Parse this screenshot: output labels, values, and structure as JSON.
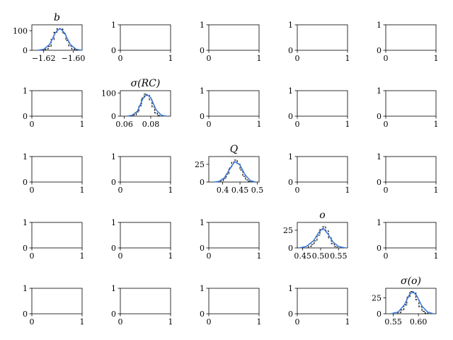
{
  "figure": {
    "rows": 5,
    "cols": 5
  },
  "colors": {
    "hist": "#000000",
    "kde": "#3a78d8",
    "axis": "#000000"
  },
  "chart_data": [
    {
      "row": 0,
      "col": 0,
      "type": "area",
      "title": "b",
      "xlim": [
        -1.628,
        -1.594
      ],
      "ylim": [
        0,
        130
      ],
      "xticks": [
        -1.62,
        -1.6
      ],
      "xticklabels": [
        "−1.62",
        "−1.60"
      ],
      "yticks": [
        0,
        100
      ],
      "yticklabels": [
        "0",
        "100"
      ],
      "series": [
        {
          "kind": "hist",
          "x": [
            -1.62,
            -1.618,
            -1.616,
            -1.614,
            -1.612,
            -1.61,
            -1.608,
            -1.606,
            -1.604,
            -1.602,
            -1.6,
            -1.598
          ],
          "y": [
            2,
            6,
            20,
            55,
            92,
            110,
            108,
            85,
            50,
            22,
            6,
            1
          ]
        },
        {
          "kind": "kde",
          "x": [
            -1.624,
            -1.62,
            -1.616,
            -1.612,
            -1.609,
            -1.606,
            -1.602,
            -1.598,
            -1.594
          ],
          "y": [
            0,
            5,
            30,
            90,
            112,
            90,
            30,
            5,
            0
          ]
        }
      ]
    },
    {
      "row": 0,
      "col": 1,
      "type": "empty",
      "xlim": [
        0,
        1
      ],
      "ylim": [
        0,
        1
      ],
      "xticklabels": [
        "0",
        "1"
      ],
      "yticklabels": [
        "0",
        "1"
      ]
    },
    {
      "row": 0,
      "col": 2,
      "type": "empty",
      "xlim": [
        0,
        1
      ],
      "ylim": [
        0,
        1
      ],
      "xticklabels": [
        "0",
        "1"
      ],
      "yticklabels": [
        "0",
        "1"
      ]
    },
    {
      "row": 0,
      "col": 3,
      "type": "empty",
      "xlim": [
        0,
        1
      ],
      "ylim": [
        0,
        1
      ],
      "xticklabels": [
        "0",
        "1"
      ],
      "yticklabels": [
        "0",
        "1"
      ]
    },
    {
      "row": 0,
      "col": 4,
      "type": "empty",
      "xlim": [
        0,
        1
      ],
      "ylim": [
        0,
        1
      ],
      "xticklabels": [
        "0",
        "1"
      ],
      "yticklabels": [
        "0",
        "1"
      ]
    },
    {
      "row": 1,
      "col": 0,
      "type": "empty",
      "xlim": [
        0,
        1
      ],
      "ylim": [
        0,
        1
      ],
      "xticklabels": [
        "0",
        "1"
      ],
      "yticklabels": [
        "0",
        "1"
      ]
    },
    {
      "row": 1,
      "col": 1,
      "type": "area",
      "title": "σ(RC)",
      "xlim": [
        0.057,
        0.095
      ],
      "ylim": [
        0,
        110
      ],
      "xticks": [
        0.06,
        0.08
      ],
      "xticklabels": [
        "0.06",
        "0.08"
      ],
      "yticks": [
        0,
        100
      ],
      "yticklabels": [
        "0",
        "100"
      ],
      "series": [
        {
          "kind": "hist",
          "x": [
            0.066,
            0.068,
            0.07,
            0.072,
            0.074,
            0.076,
            0.078,
            0.08,
            0.082,
            0.084,
            0.086
          ],
          "y": [
            2,
            6,
            18,
            45,
            78,
            95,
            90,
            70,
            40,
            14,
            3
          ]
        },
        {
          "kind": "kde",
          "x": [
            0.062,
            0.066,
            0.07,
            0.074,
            0.077,
            0.08,
            0.084,
            0.088,
            0.092
          ],
          "y": [
            0,
            4,
            22,
            75,
            94,
            80,
            28,
            4,
            0
          ]
        }
      ]
    },
    {
      "row": 1,
      "col": 2,
      "type": "empty",
      "xlim": [
        0,
        1
      ],
      "ylim": [
        0,
        1
      ],
      "xticklabels": [
        "0",
        "1"
      ],
      "yticklabels": [
        "0",
        "1"
      ]
    },
    {
      "row": 1,
      "col": 3,
      "type": "empty",
      "xlim": [
        0,
        1
      ],
      "ylim": [
        0,
        1
      ],
      "xticklabels": [
        "0",
        "1"
      ],
      "yticklabels": [
        "0",
        "1"
      ]
    },
    {
      "row": 1,
      "col": 4,
      "type": "empty",
      "xlim": [
        0,
        1
      ],
      "ylim": [
        0,
        1
      ],
      "xticklabels": [
        "0",
        "1"
      ],
      "yticklabels": [
        "0",
        "1"
      ]
    },
    {
      "row": 2,
      "col": 0,
      "type": "empty",
      "xlim": [
        0,
        1
      ],
      "ylim": [
        0,
        1
      ],
      "xticklabels": [
        "0",
        "1"
      ],
      "yticklabels": [
        "0",
        "1"
      ]
    },
    {
      "row": 2,
      "col": 1,
      "type": "empty",
      "xlim": [
        0,
        1
      ],
      "ylim": [
        0,
        1
      ],
      "xticklabels": [
        "0",
        "1"
      ],
      "yticklabels": [
        "0",
        "1"
      ]
    },
    {
      "row": 2,
      "col": 2,
      "type": "area",
      "title": "Q",
      "xlim": [
        0.36,
        0.505
      ],
      "ylim": [
        0,
        36
      ],
      "xticks": [
        0.4,
        0.45,
        0.5
      ],
      "xticklabels": [
        "0.4",
        "0.45",
        "0.5"
      ],
      "yticks": [
        0,
        25
      ],
      "yticklabels": [
        "0",
        "25"
      ],
      "series": [
        {
          "kind": "hist",
          "x": [
            0.39,
            0.398,
            0.406,
            0.414,
            0.422,
            0.43,
            0.438,
            0.446,
            0.454,
            0.462,
            0.47,
            0.478
          ],
          "y": [
            1,
            2,
            5,
            11,
            20,
            28,
            31,
            26,
            17,
            8,
            3,
            1
          ]
        },
        {
          "kind": "kde",
          "x": [
            0.375,
            0.39,
            0.405,
            0.42,
            0.435,
            0.45,
            0.465,
            0.48,
            0.495
          ],
          "y": [
            0,
            1,
            6,
            18,
            29,
            24,
            10,
            2,
            0
          ]
        }
      ]
    },
    {
      "row": 2,
      "col": 3,
      "type": "empty",
      "xlim": [
        0,
        1
      ],
      "ylim": [
        0,
        1
      ],
      "xticklabels": [
        "0",
        "1"
      ],
      "yticklabels": [
        "0",
        "1"
      ]
    },
    {
      "row": 2,
      "col": 4,
      "type": "empty",
      "xlim": [
        0,
        1
      ],
      "ylim": [
        0,
        1
      ],
      "xticklabels": [
        "0",
        "1"
      ],
      "yticklabels": [
        "0",
        "1"
      ]
    },
    {
      "row": 3,
      "col": 0,
      "type": "empty",
      "xlim": [
        0,
        1
      ],
      "ylim": [
        0,
        1
      ],
      "xticklabels": [
        "0",
        "1"
      ],
      "yticklabels": [
        "0",
        "1"
      ]
    },
    {
      "row": 3,
      "col": 1,
      "type": "empty",
      "xlim": [
        0,
        1
      ],
      "ylim": [
        0,
        1
      ],
      "xticklabels": [
        "0",
        "1"
      ],
      "yticklabels": [
        "0",
        "1"
      ]
    },
    {
      "row": 3,
      "col": 2,
      "type": "empty",
      "xlim": [
        0,
        1
      ],
      "ylim": [
        0,
        1
      ],
      "xticklabels": [
        "0",
        "1"
      ],
      "yticklabels": [
        "0",
        "1"
      ]
    },
    {
      "row": 3,
      "col": 3,
      "type": "area",
      "title": "o",
      "xlim": [
        0.435,
        0.575
      ],
      "ylim": [
        0,
        36
      ],
      "xticks": [
        0.45,
        0.5,
        0.55
      ],
      "xticklabels": [
        "0.45",
        "0.50",
        "0.55"
      ],
      "yticks": [
        0,
        25
      ],
      "yticklabels": [
        "0",
        "25"
      ],
      "series": [
        {
          "kind": "hist",
          "x": [
            0.47,
            0.478,
            0.486,
            0.494,
            0.502,
            0.51,
            0.518,
            0.526,
            0.534,
            0.542
          ],
          "y": [
            2,
            5,
            10,
            18,
            26,
            30,
            24,
            14,
            6,
            2
          ]
        },
        {
          "kind": "kde",
          "x": [
            0.44,
            0.46,
            0.48,
            0.495,
            0.507,
            0.52,
            0.535,
            0.55,
            0.57
          ],
          "y": [
            0,
            2,
            10,
            22,
            28,
            20,
            8,
            2,
            0
          ]
        }
      ]
    },
    {
      "row": 3,
      "col": 4,
      "type": "empty",
      "xlim": [
        0,
        1
      ],
      "ylim": [
        0,
        1
      ],
      "xticklabels": [
        "0",
        "1"
      ],
      "yticklabels": [
        "0",
        "1"
      ]
    },
    {
      "row": 4,
      "col": 0,
      "type": "empty",
      "xlim": [
        0,
        1
      ],
      "ylim": [
        0,
        1
      ],
      "xticklabels": [
        "0",
        "1"
      ],
      "yticklabels": [
        "0",
        "1"
      ]
    },
    {
      "row": 4,
      "col": 1,
      "type": "empty",
      "xlim": [
        0,
        1
      ],
      "ylim": [
        0,
        1
      ],
      "xticklabels": [
        "0",
        "1"
      ],
      "yticklabels": [
        "0",
        "1"
      ]
    },
    {
      "row": 4,
      "col": 2,
      "type": "empty",
      "xlim": [
        0,
        1
      ],
      "ylim": [
        0,
        1
      ],
      "xticklabels": [
        "0",
        "1"
      ],
      "yticklabels": [
        "0",
        "1"
      ]
    },
    {
      "row": 4,
      "col": 3,
      "type": "empty",
      "xlim": [
        0,
        1
      ],
      "ylim": [
        0,
        1
      ],
      "xticklabels": [
        "0",
        "1"
      ],
      "yticklabels": [
        "0",
        "1"
      ]
    },
    {
      "row": 4,
      "col": 4,
      "type": "area",
      "title": "σ(o)",
      "xlim": [
        0.535,
        0.635
      ],
      "ylim": [
        0,
        40
      ],
      "xticks": [
        0.55,
        0.6
      ],
      "xticklabels": [
        "0.55",
        "0.60"
      ],
      "yticks": [
        0,
        25
      ],
      "yticklabels": [
        "0",
        "25"
      ],
      "series": [
        {
          "kind": "hist",
          "x": [
            0.562,
            0.568,
            0.574,
            0.58,
            0.586,
            0.592,
            0.598,
            0.604,
            0.61,
            0.616
          ],
          "y": [
            2,
            6,
            14,
            26,
            35,
            33,
            22,
            11,
            4,
            1
          ]
        },
        {
          "kind": "kde",
          "x": [
            0.545,
            0.56,
            0.572,
            0.582,
            0.589,
            0.597,
            0.607,
            0.618,
            0.63
          ],
          "y": [
            0,
            3,
            14,
            30,
            35,
            28,
            12,
            3,
            0
          ]
        }
      ]
    }
  ]
}
